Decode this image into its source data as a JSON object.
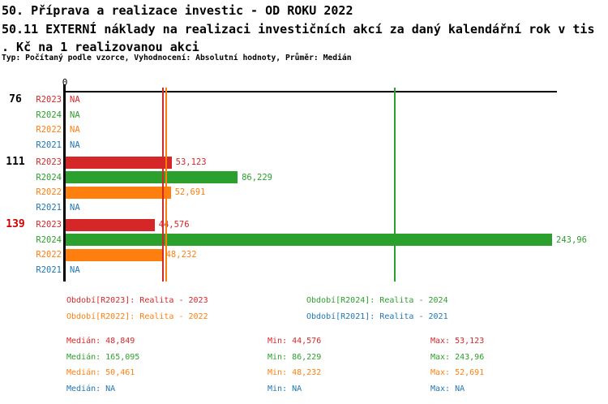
{
  "header": {
    "title_lines": [
      "50. Příprava a realizace investic - OD ROKU 2022",
      "50.11 EXTERNÍ náklady na realizaci investičních akcí za daný kalendářní rok v tis",
      ". Kč na 1 realizovanou akci"
    ],
    "subtitle": "Typ: Počítaný podle vzorce, Vyhodnocení: Absolutní hodnoty, Průměr: Medián"
  },
  "colors": {
    "red": "#d62728",
    "green": "#2ca02c",
    "orange": "#ff7f0e",
    "blue": "#1f77b4",
    "axis": "#000000",
    "highlight_group_label": "#cc0000"
  },
  "chart_data": {
    "type": "bar",
    "orientation": "horizontal",
    "x_tick_label": "0",
    "xlim": [
      0,
      244
    ],
    "series_colors": {
      "R2023": "#d62728",
      "R2024": "#2ca02c",
      "R2022": "#ff7f0e",
      "R2021": "#1f77b4"
    },
    "groups": [
      {
        "label": "76",
        "label_color": "#000000",
        "bars": [
          {
            "series": "R2023",
            "value": null,
            "display": "NA"
          },
          {
            "series": "R2024",
            "value": null,
            "display": "NA"
          },
          {
            "series": "R2022",
            "value": null,
            "display": "NA"
          },
          {
            "series": "R2021",
            "value": null,
            "display": "NA"
          }
        ]
      },
      {
        "label": "111",
        "label_color": "#000000",
        "bars": [
          {
            "series": "R2023",
            "value": 53.123,
            "display": "53,123"
          },
          {
            "series": "R2024",
            "value": 86.229,
            "display": "86,229"
          },
          {
            "series": "R2022",
            "value": 52.691,
            "display": "52,691"
          },
          {
            "series": "R2021",
            "value": null,
            "display": "NA"
          }
        ]
      },
      {
        "label": "139",
        "label_color": "#cc0000",
        "bars": [
          {
            "series": "R2023",
            "value": 44.576,
            "display": "44,576"
          },
          {
            "series": "R2024",
            "value": 243.96,
            "display": "243,96"
          },
          {
            "series": "R2022",
            "value": 48.232,
            "display": "48,232"
          },
          {
            "series": "R2021",
            "value": null,
            "display": "NA"
          }
        ]
      }
    ],
    "median_lines": [
      {
        "series": "R2023",
        "value": 48.849,
        "color": "#d62728"
      },
      {
        "series": "R2022",
        "value": 50.461,
        "color": "#ff7f0e"
      },
      {
        "series": "R2024",
        "value": 165.095,
        "color": "#2ca02c"
      }
    ]
  },
  "legend": {
    "items": [
      {
        "series": "R2023",
        "label": "Období[R2023]: Realita - 2023",
        "color": "#d62728"
      },
      {
        "series": "R2024",
        "label": "Období[R2024]: Realita - 2024",
        "color": "#2ca02c"
      },
      {
        "series": "R2022",
        "label": "Období[R2022]: Realita - 2022",
        "color": "#ff7f0e"
      },
      {
        "series": "R2021",
        "label": "Období[R2021]: Realita - 2021",
        "color": "#1f77b4"
      }
    ]
  },
  "stats": {
    "column_labels": [
      "Medián",
      "Min",
      "Max"
    ],
    "rows": [
      {
        "series": "R2023",
        "color": "#d62728",
        "median": "48,849",
        "min": "44,576",
        "max": "53,123"
      },
      {
        "series": "R2024",
        "color": "#2ca02c",
        "median": "165,095",
        "min": "86,229",
        "max": "243,96"
      },
      {
        "series": "R2022",
        "color": "#ff7f0e",
        "median": "50,461",
        "min": "48,232",
        "max": "52,691"
      },
      {
        "series": "R2021",
        "color": "#1f77b4",
        "median": "NA",
        "min": "NA",
        "max": "NA"
      }
    ]
  }
}
